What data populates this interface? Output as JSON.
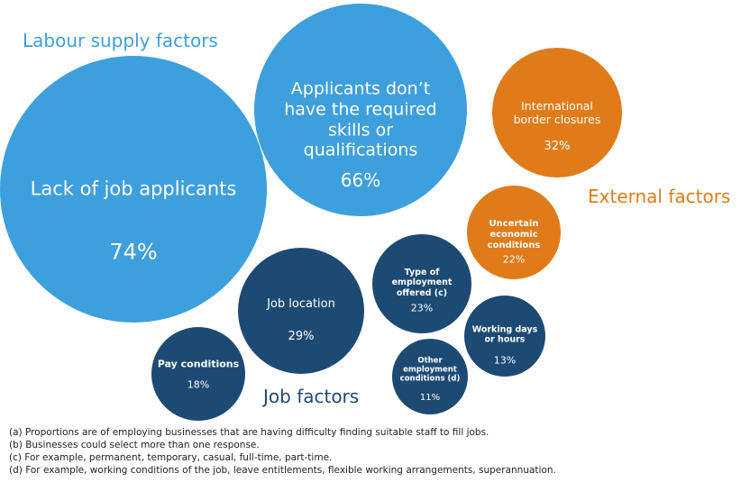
{
  "chart_data": {
    "type": "bubble",
    "groups": [
      {
        "name": "Labour supply factors",
        "color": "#3d9fdc",
        "bubbles": [
          {
            "label": "Lack of job applicants",
            "value": 74,
            "value_label": "74%"
          },
          {
            "label": "Applicants don’t have the required skills or qualifications",
            "value": 66,
            "value_label": "66%"
          }
        ]
      },
      {
        "name": "External factors",
        "color": "#e07b1a",
        "bubbles": [
          {
            "label": "International border closures",
            "value": 32,
            "value_label": "32%"
          },
          {
            "label": "Uncertain economic conditions",
            "value": 22,
            "value_label": "22%"
          }
        ]
      },
      {
        "name": "Job factors",
        "color": "#1d4a73",
        "bubbles": [
          {
            "label": "Job location",
            "value": 29,
            "value_label": "29%"
          },
          {
            "label": "Type of employment offered (c)",
            "value": 23,
            "value_label": "23%"
          },
          {
            "label": "Pay conditions",
            "value": 18,
            "value_label": "18%"
          },
          {
            "label": "Working days or hours",
            "value": 13,
            "value_label": "13%"
          },
          {
            "label": "Other employment conditions (d)",
            "value": 11,
            "value_label": "11%"
          }
        ]
      }
    ],
    "notes": [
      "(a) Proportions are of employing businesses that are having difficulty finding suitable staff to fill jobs.",
      "(b) Businesses could select more than one response.",
      "(c) For example, permanent, temporary, casual, full-time, part-time.",
      "(d) For example, working conditions of the job, leave entitlements, flexible working arrangements, superannuation."
    ]
  }
}
